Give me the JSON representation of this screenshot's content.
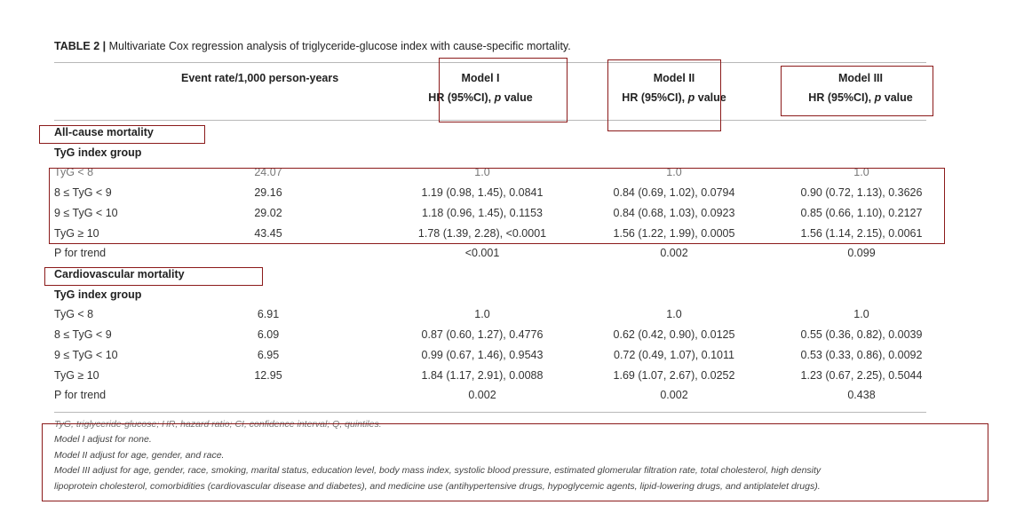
{
  "table": {
    "title_label": "TABLE 2 |",
    "title_text": " Multivariate Cox regression analysis of triglyceride-glucose index with cause-specific mortality.",
    "headers": {
      "event_rate": "Event rate/1,000 person-years",
      "m1_name": "Model I",
      "m2_name": "Model II",
      "m3_name": "Model III",
      "hr_prefix": "HR (95%CI), ",
      "hr_p": "p",
      "hr_suffix": " value"
    },
    "sections": [
      {
        "title": "All-cause mortality",
        "group": "TyG index group",
        "rows": [
          {
            "label": "TyG < 8",
            "rate": "24.07",
            "m1": "1.0",
            "m2": "1.0",
            "m3": "1.0"
          },
          {
            "label": "8 ≤ TyG < 9",
            "rate": "29.16",
            "m1": "1.19 (0.98, 1.45), 0.0841",
            "m2": "0.84 (0.69, 1.02), 0.0794",
            "m3": "0.90 (0.72, 1.13), 0.3626"
          },
          {
            "label": "9 ≤ TyG < 10",
            "rate": "29.02",
            "m1": "1.18 (0.96, 1.45), 0.1153",
            "m2": "0.84 (0.68, 1.03), 0.0923",
            "m3": "0.85 (0.66, 1.10), 0.2127"
          },
          {
            "label": "TyG ≥ 10",
            "rate": "43.45",
            "m1": "1.78 (1.39, 2.28), <0.0001",
            "m2": "1.56 (1.22, 1.99), 0.0005",
            "m3": "1.56 (1.14, 2.15), 0.0061"
          }
        ],
        "trend": {
          "label": "P for trend",
          "m1": "<0.001",
          "m2": "0.002",
          "m3": "0.099"
        }
      },
      {
        "title": "Cardiovascular mortality",
        "group": "TyG index group",
        "rows": [
          {
            "label": "TyG < 8",
            "rate": "6.91",
            "m1": "1.0",
            "m2": "1.0",
            "m3": "1.0"
          },
          {
            "label": "8 ≤ TyG < 9",
            "rate": "6.09",
            "m1": "0.87 (0.60, 1.27), 0.4776",
            "m2": "0.62 (0.42, 0.90), 0.0125",
            "m3": "0.55 (0.36, 0.82), 0.0039"
          },
          {
            "label": "9 ≤ TyG < 10",
            "rate": "6.95",
            "m1": "0.99 (0.67, 1.46), 0.9543",
            "m2": "0.72 (0.49, 1.07), 0.1011",
            "m3": "0.53 (0.33, 0.86), 0.0092"
          },
          {
            "label": "TyG ≥ 10",
            "rate": "12.95",
            "m1": "1.84 (1.17, 2.91), 0.0088",
            "m2": "1.69 (1.07, 2.67), 0.0252",
            "m3": "1.23 (0.67, 2.25), 0.5044"
          }
        ],
        "trend": {
          "label": "P for trend",
          "m1": "0.002",
          "m2": "0.002",
          "m3": "0.438"
        }
      }
    ],
    "footnotes": [
      "TyG, triglyceride-glucose; HR, hazard ratio; CI, confidence interval; Q, quintiles.",
      "Model I adjust for none.",
      "Model II adjust for age, gender, and race.",
      "Model III adjust for age, gender, race, smoking, marital status, education level, body mass index, systolic blood pressure, estimated glomerular filtration rate, total cholesterol, high density",
      "lipoprotein cholesterol, comorbidities (cardiovascular disease and diabetes), and medicine use (antihypertensive drugs, hypoglycemic agents, lipid-lowering drugs, and antiplatelet drugs)."
    ]
  },
  "annotation_color": "#8b1a1a"
}
